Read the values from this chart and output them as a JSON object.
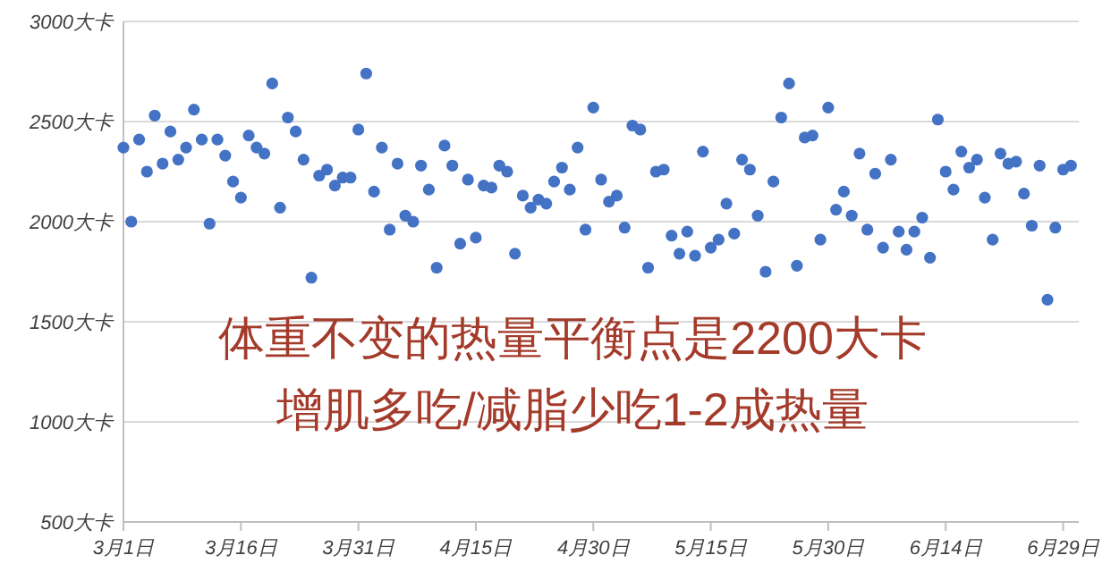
{
  "chart_data": {
    "type": "scatter",
    "x": [
      "--03-01",
      "--03-02",
      "--03-03",
      "--03-04",
      "--03-05",
      "--03-06",
      "--03-07",
      "--03-08",
      "--03-09",
      "--03-10",
      "--03-11",
      "--03-12",
      "--03-13",
      "--03-14",
      "--03-15",
      "--03-16",
      "--03-17",
      "--03-18",
      "--03-19",
      "--03-20",
      "--03-21",
      "--03-22",
      "--03-23",
      "--03-24",
      "--03-25",
      "--03-26",
      "--03-27",
      "--03-28",
      "--03-29",
      "--03-30",
      "--03-31",
      "--04-01",
      "--04-02",
      "--04-03",
      "--04-04",
      "--04-05",
      "--04-06",
      "--04-07",
      "--04-08",
      "--04-09",
      "--04-10",
      "--04-11",
      "--04-12",
      "--04-13",
      "--04-14",
      "--04-15",
      "--04-16",
      "--04-17",
      "--04-18",
      "--04-19",
      "--04-20",
      "--04-21",
      "--04-22",
      "--04-23",
      "--04-24",
      "--04-25",
      "--04-26",
      "--04-27",
      "--04-28",
      "--04-29",
      "--04-30",
      "--05-01",
      "--05-02",
      "--05-03",
      "--05-04",
      "--05-05",
      "--05-06",
      "--05-07",
      "--05-08",
      "--05-09",
      "--05-10",
      "--05-11",
      "--05-12",
      "--05-13",
      "--05-14",
      "--05-15",
      "--05-16",
      "--05-17",
      "--05-18",
      "--05-19",
      "--05-20",
      "--05-21",
      "--05-22",
      "--05-23",
      "--05-24",
      "--05-25",
      "--05-26",
      "--05-27",
      "--05-28",
      "--05-29",
      "--05-30",
      "--05-31",
      "--06-01",
      "--06-02",
      "--06-03",
      "--06-04",
      "--06-05",
      "--06-06",
      "--06-07",
      "--06-08",
      "--06-09",
      "--06-10",
      "--06-11",
      "--06-12",
      "--06-13",
      "--06-14",
      "--06-15",
      "--06-16",
      "--06-17",
      "--06-18",
      "--06-19",
      "--06-20",
      "--06-21",
      "--06-22",
      "--06-23",
      "--06-24",
      "--06-25",
      "--06-26",
      "--06-27",
      "--06-28",
      "--06-29",
      "--06-30"
    ],
    "values": [
      2370,
      2000,
      2410,
      2250,
      2530,
      2290,
      2450,
      2310,
      2370,
      2560,
      2410,
      1990,
      2410,
      2330,
      2200,
      2120,
      2430,
      2370,
      2340,
      2690,
      2070,
      2520,
      2450,
      2310,
      1720,
      2230,
      2260,
      2180,
      2220,
      2220,
      2460,
      2740,
      2150,
      2370,
      1960,
      2290,
      2030,
      2000,
      2280,
      2160,
      1770,
      2380,
      2280,
      1890,
      2210,
      1920,
      2180,
      2170,
      2280,
      2250,
      1840,
      2130,
      2070,
      2110,
      2090,
      2200,
      2270,
      2160,
      2370,
      1960,
      2570,
      2210,
      2100,
      2130,
      1970,
      2480,
      2460,
      1770,
      2250,
      2260,
      1930,
      1840,
      1950,
      1830,
      2350,
      1870,
      1910,
      2090,
      1940,
      2310,
      2260,
      2030,
      1750,
      2200,
      2520,
      2690,
      1780,
      2420,
      2430,
      1910,
      2570,
      2060,
      2150,
      2030,
      2340,
      1960,
      2240,
      1870,
      2310,
      1950,
      1860,
      1950,
      2020,
      1820,
      2510,
      2250,
      2160,
      2350,
      2270,
      2310,
      2120,
      1910,
      2340,
      2290,
      2300,
      2140,
      1980,
      2280,
      1610,
      1970,
      2260,
      2280
    ],
    "color": "#4472c4",
    "marker": "circle",
    "grid": "y",
    "xlim": [
      "--03-01",
      "--07-01"
    ],
    "xticks": [
      {
        "value": "--03-01",
        "label": "3月1日"
      },
      {
        "value": "--03-16",
        "label": "3月16日"
      },
      {
        "value": "--03-31",
        "label": "3月31日"
      },
      {
        "value": "--04-15",
        "label": "4月15日"
      },
      {
        "value": "--04-30",
        "label": "4月30日"
      },
      {
        "value": "--05-15",
        "label": "5月15日"
      },
      {
        "value": "--05-30",
        "label": "5月30日"
      },
      {
        "value": "--06-14",
        "label": "6月14日"
      },
      {
        "value": "--06-29",
        "label": "6月29日"
      }
    ],
    "ylim": [
      500,
      3000
    ],
    "yticks": [
      {
        "value": 500,
        "label": "500大卡"
      },
      {
        "value": 1000,
        "label": "1000大卡"
      },
      {
        "value": 1500,
        "label": "1500大卡"
      },
      {
        "value": 2000,
        "label": "2000大卡"
      },
      {
        "value": 2500,
        "label": "2500大卡"
      },
      {
        "value": 3000,
        "label": "3000大卡"
      }
    ],
    "annotations": [
      "体重不变的热量平衡点是2200大卡",
      "增肌多吃/减脂少吃1-2成热量"
    ]
  }
}
